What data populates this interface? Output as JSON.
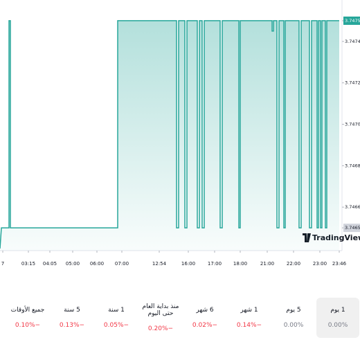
{
  "chart_data": {
    "type": "line",
    "x": [
      0,
      2,
      13,
      13,
      15,
      15,
      170,
      170,
      255,
      255,
      258,
      258,
      267,
      267,
      270,
      270,
      285,
      285,
      288,
      288,
      292,
      292,
      295,
      295,
      318,
      318,
      321,
      321,
      345,
      345,
      347,
      347,
      393,
      393,
      395,
      395,
      400,
      400,
      403,
      403,
      410,
      410,
      412,
      412,
      432,
      432,
      435,
      435,
      447,
      447,
      450,
      450,
      458,
      458,
      460,
      460,
      463,
      463,
      465,
      465,
      470,
      470,
      472,
      472,
      490
    ],
    "series": [
      {
        "color": "#26a69a",
        "values": [
          3.7464,
          3.7465,
          3.7465,
          3.7475,
          3.7475,
          3.7465,
          3.7465,
          3.7475,
          3.7475,
          3.7465,
          3.7465,
          3.7475,
          3.7475,
          3.7465,
          3.7465,
          3.7475,
          3.7475,
          3.7465,
          3.7465,
          3.7475,
          3.7475,
          3.7465,
          3.7465,
          3.7475,
          3.7475,
          3.7465,
          3.7465,
          3.7475,
          3.7475,
          3.7465,
          3.7465,
          3.7475,
          3.7475,
          3.74745,
          3.74745,
          3.7475,
          3.7475,
          3.7465,
          3.7465,
          3.7475,
          3.7475,
          3.7465,
          3.7465,
          3.7475,
          3.7475,
          3.7465,
          3.7465,
          3.7475,
          3.7475,
          3.7465,
          3.7465,
          3.7475,
          3.7475,
          3.7465,
          3.7465,
          3.7475,
          3.7475,
          3.7465,
          3.7465,
          3.7475,
          3.7475,
          3.7465,
          3.7465,
          3.7475,
          3.7475
        ]
      }
    ],
    "xlim": [
      0,
      492
    ],
    "xticks": [
      {
        "value": 4,
        "label": "7"
      },
      {
        "value": 41,
        "label": "03:15"
      },
      {
        "value": 72,
        "label": "04:05"
      },
      {
        "value": 105,
        "label": "05:00"
      },
      {
        "value": 140,
        "label": "06:00"
      },
      {
        "value": 176,
        "label": "07:00"
      },
      {
        "value": 230,
        "label": "12:54"
      },
      {
        "value": 272,
        "label": "16:00"
      },
      {
        "value": 310,
        "label": "17:00"
      },
      {
        "value": 347,
        "label": "18:00"
      },
      {
        "value": 386,
        "label": "21:00"
      },
      {
        "value": 424,
        "label": "22:00"
      },
      {
        "value": 462,
        "label": "23:00"
      },
      {
        "value": 490,
        "label": "23:46"
      }
    ],
    "ylim": [
      3.74639,
      3.7476
    ],
    "yticks": [
      {
        "value": 3.7465,
        "label": "3.746500"
      },
      {
        "value": 3.7466,
        "label": "3.746600"
      },
      {
        "value": 3.7468,
        "label": "3.746800"
      },
      {
        "value": 3.747,
        "label": "3.747000"
      },
      {
        "value": 3.7472,
        "label": "3.747200"
      },
      {
        "value": 3.7474,
        "label": "3.747400"
      },
      {
        "value": 3.7475,
        "label": "3.747500"
      }
    ],
    "watermark": "TradingView"
  },
  "periods": [
    {
      "label": "1 يوم",
      "change": "0.00%"
    },
    {
      "label": "5 يوم",
      "change": "0.00%"
    },
    {
      "label": "1 شهر",
      "change": "−0.14%"
    },
    {
      "label": "6 شهر",
      "change": "−0.02%"
    },
    {
      "label": "منذ بداية العام حتى اليوم",
      "change": "−0.20%"
    },
    {
      "label": "1 سنة",
      "change": "−0.05%"
    },
    {
      "label": "5 سنة",
      "change": "−0.13%"
    },
    {
      "label": "جميع الأوقات",
      "change": "−0.10%"
    }
  ]
}
